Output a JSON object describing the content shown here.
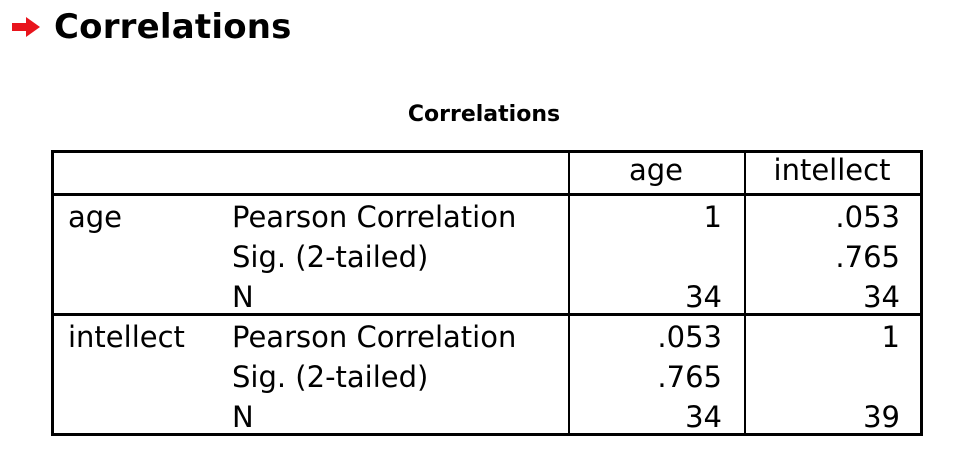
{
  "heading": {
    "icon": "red-arrow-icon",
    "icon_color": "#e8141c",
    "title": "Correlations"
  },
  "table": {
    "title": "Correlations",
    "columns": [
      "age",
      "intellect"
    ],
    "blocks": [
      {
        "variable": "age",
        "rows": [
          {
            "stat": "Pearson Correlation",
            "age": "1",
            "intellect": ".053"
          },
          {
            "stat": "Sig. (2-tailed)",
            "age": "",
            "intellect": ".765"
          },
          {
            "stat": "N",
            "age": "34",
            "intellect": "34"
          }
        ]
      },
      {
        "variable": "intellect",
        "rows": [
          {
            "stat": "Pearson Correlation",
            "age": ".053",
            "intellect": "1"
          },
          {
            "stat": "Sig. (2-tailed)",
            "age": ".765",
            "intellect": ""
          },
          {
            "stat": "N",
            "age": "34",
            "intellect": "39"
          }
        ]
      }
    ]
  }
}
